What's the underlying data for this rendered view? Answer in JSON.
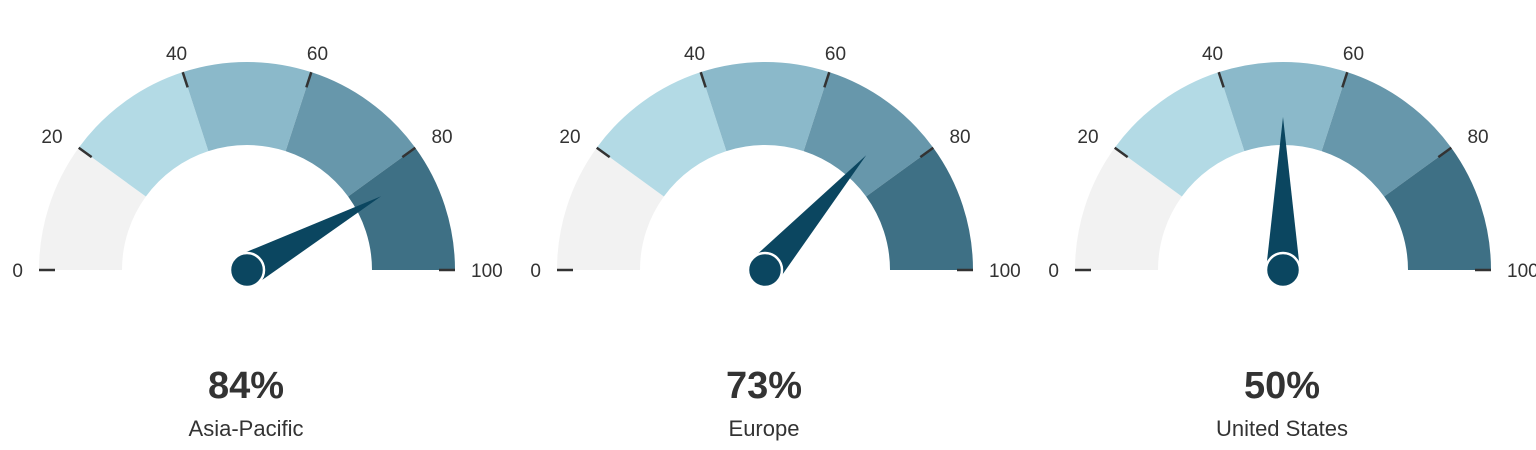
{
  "chart_data": [
    {
      "type": "gauge",
      "value": 84,
      "value_label": "84%",
      "label": "Asia-Pacific",
      "range": [
        0,
        100
      ],
      "ticks": [
        "0",
        "20",
        "40",
        "60",
        "80",
        "100"
      ]
    },
    {
      "type": "gauge",
      "value": 73,
      "value_label": "73%",
      "label": "Europe",
      "range": [
        0,
        100
      ],
      "ticks": [
        "0",
        "20",
        "40",
        "60",
        "80",
        "100"
      ]
    },
    {
      "type": "gauge",
      "value": 50,
      "value_label": "50%",
      "label": "United States",
      "range": [
        0,
        100
      ],
      "ticks": [
        "0",
        "20",
        "40",
        "60",
        "80",
        "100"
      ]
    }
  ],
  "colors": {
    "bands": [
      "#f2f2f2",
      "#b3dae5",
      "#8bb9ca",
      "#6797ab",
      "#3e7085"
    ],
    "needle": "#0b4660",
    "tick": "#333333"
  }
}
